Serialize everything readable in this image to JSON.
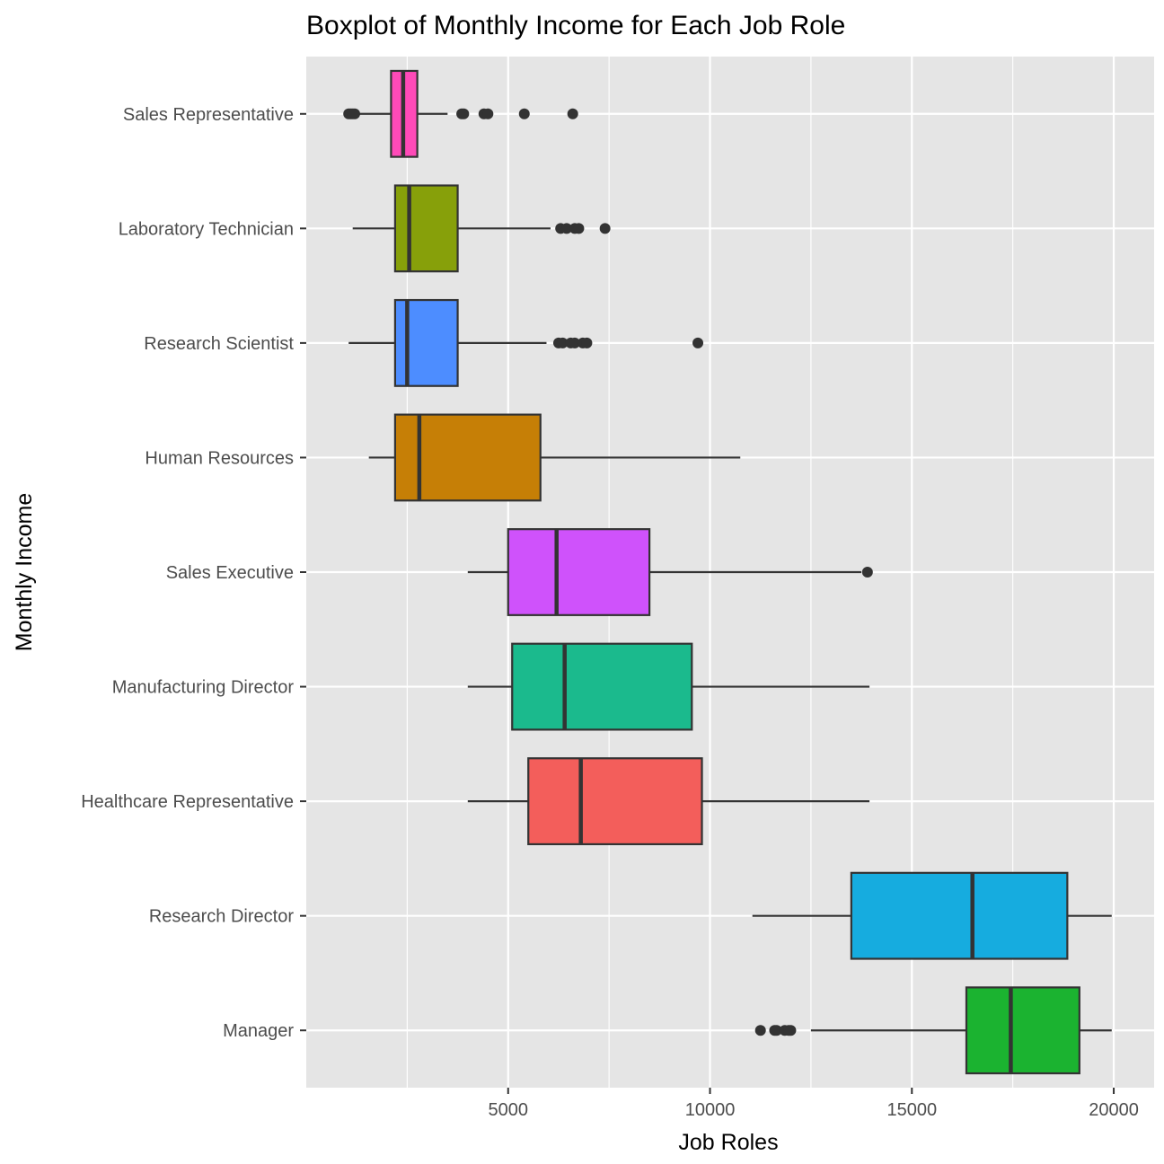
{
  "chart_data": {
    "type": "boxplot",
    "orientation": "horizontal",
    "title": "Boxplot of Monthly Income for Each Job Role",
    "xlabel": "Job Roles",
    "ylabel": "Monthly Income",
    "xlim": [
      0,
      21000
    ],
    "xticks": [
      5000,
      10000,
      15000,
      20000
    ],
    "grid": true,
    "legend": "none",
    "colors": {
      "panel_background": "#e5e5e5",
      "grid": "#ffffff",
      "box_stroke": "#333333",
      "tick_label": "#4d4d4d"
    },
    "categories": [
      "Sales Representative",
      "Laboratory Technician",
      "Research Scientist",
      "Human Resources",
      "Sales Executive",
      "Manufacturing Director",
      "Healthcare Representative",
      "Research Director",
      "Manager"
    ],
    "series": [
      {
        "category": "Sales Representative",
        "color": "#ff4ab8",
        "min": 1300,
        "q1": 2100,
        "median": 2400,
        "q3": 2750,
        "max": 3500,
        "outliers": [
          1050,
          1100,
          1150,
          1200,
          3850,
          3900,
          4400,
          4500,
          5400,
          6600
        ]
      },
      {
        "category": "Laboratory Technician",
        "color": "#87a00a",
        "min": 1150,
        "q1": 2200,
        "median": 2550,
        "q3": 3750,
        "max": 6050,
        "outliers": [
          6300,
          6450,
          6650,
          6750,
          7400
        ]
      },
      {
        "category": "Research Scientist",
        "color": "#4d8dff",
        "min": 1050,
        "q1": 2200,
        "median": 2500,
        "q3": 3750,
        "max": 5950,
        "outliers": [
          6250,
          6350,
          6550,
          6650,
          6850,
          6950,
          9700
        ]
      },
      {
        "category": "Human Resources",
        "color": "#c67f06",
        "min": 1550,
        "q1": 2200,
        "median": 2800,
        "q3": 5800,
        "max": 10750,
        "outliers": []
      },
      {
        "category": "Sales Executive",
        "color": "#cf52fb",
        "min": 4000,
        "q1": 5000,
        "median": 6200,
        "q3": 8500,
        "max": 13750,
        "outliers": [
          13900
        ]
      },
      {
        "category": "Manufacturing Director",
        "color": "#1bba8d",
        "min": 4000,
        "q1": 5100,
        "median": 6400,
        "q3": 9550,
        "max": 13950,
        "outliers": []
      },
      {
        "category": "Healthcare Representative",
        "color": "#f35e5b",
        "min": 4000,
        "q1": 5500,
        "median": 6800,
        "q3": 9800,
        "max": 13950,
        "outliers": []
      },
      {
        "category": "Research Director",
        "color": "#16acdf",
        "min": 11050,
        "q1": 13500,
        "median": 16500,
        "q3": 18850,
        "max": 19950,
        "outliers": []
      },
      {
        "category": "Manager",
        "color": "#1bb330",
        "min": 12500,
        "q1": 16350,
        "median": 17450,
        "q3": 19150,
        "max": 19950,
        "outliers": [
          11250,
          11600,
          11650,
          11850,
          11950,
          12000
        ]
      }
    ]
  }
}
